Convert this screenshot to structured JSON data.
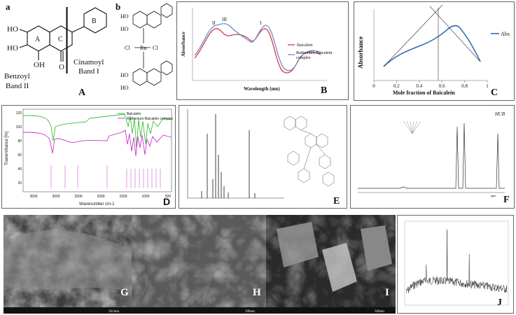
{
  "panels": {
    "A": {
      "sub_a": "a",
      "sub_b": "b",
      "letter": "A",
      "rings": [
        "A",
        "C",
        "B"
      ],
      "groups": [
        "HO",
        "HO",
        "OH",
        "O"
      ],
      "band_ii": [
        "Benzoyl",
        "Band II"
      ],
      "band_i": [
        "Cinamoyl",
        "Band I"
      ],
      "complex_groups": [
        "HO",
        "HO",
        "Cl",
        "Ru",
        "Cl",
        "HO",
        "HO"
      ]
    },
    "B": {
      "letter": "B",
      "peaks": [
        "II",
        "III",
        "I"
      ],
      "legend": [
        "Baicalein",
        "Ruthenium-Baicalein complex"
      ],
      "x_label": "Wavelength (nm)",
      "y_label": "Absorbance"
    },
    "C": {
      "letter": "C",
      "legend": "Abs",
      "y_label": "Absorbance",
      "x_label": "Mole fraction of Baicalein",
      "xticks": [
        0,
        0.2,
        0.4,
        0.6,
        0.8,
        1
      ]
    },
    "D": {
      "letter": "D",
      "y_label": "Transmittance [%]",
      "x_label": "Wavenumber cm-1",
      "legend": [
        "Baicalein",
        "Ruthenium-Baicalein complex"
      ],
      "yticks": [
        120,
        100,
        80,
        60,
        40,
        20
      ],
      "xticks": [
        3500,
        3000,
        2500,
        2000,
        1500,
        1000,
        500
      ]
    },
    "E": {
      "letter": "E"
    },
    "F": {
      "letter": "F",
      "label": "HCB",
      "unit": "ppm"
    },
    "G": {
      "letter": "G",
      "scale": "50.0um"
    },
    "H": {
      "letter": "H",
      "scale": "100um"
    },
    "I": {
      "letter": "I",
      "scale": "500um"
    },
    "J": {
      "letter": "J"
    }
  }
}
